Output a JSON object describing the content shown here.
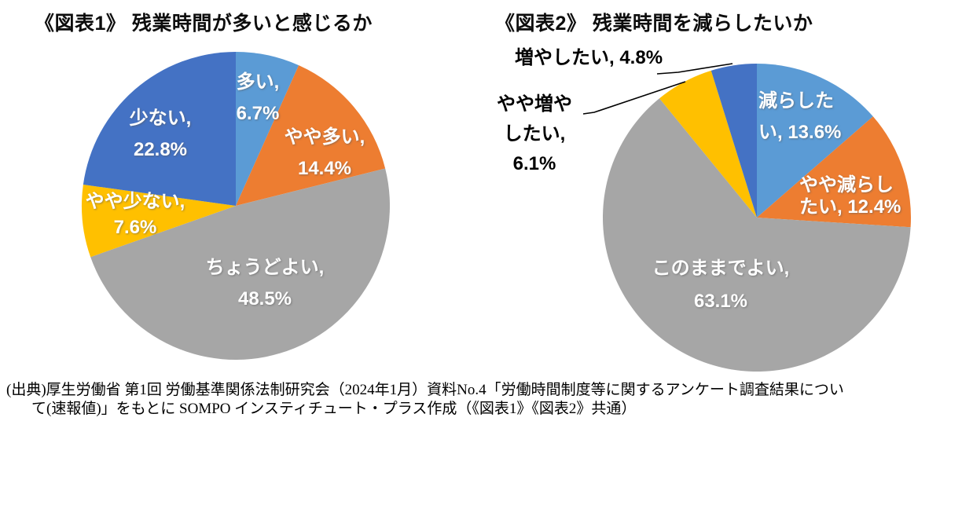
{
  "page": {
    "background": "#ffffff"
  },
  "chart_data": [
    {
      "type": "pie",
      "title": "《図表1》 残業時間が多いと感じるか",
      "start_angle_deg": 0,
      "direction": "clockwise",
      "categories": [
        "多い",
        "やや多い",
        "ちょうどよい",
        "やや少ない",
        "少ない"
      ],
      "values": [
        6.7,
        14.4,
        48.5,
        7.6,
        22.8
      ],
      "unit": "%",
      "colors": [
        "#5B9BD5",
        "#ED7D31",
        "#A6A6A6",
        "#FFC000",
        "#4472C4"
      ],
      "legend": "none",
      "data_labels": [
        {
          "text": "多い, 6.7%",
          "lines": [
            "多い,",
            "6.7%"
          ],
          "placement": "inside"
        },
        {
          "text": "やや多い, 14.4%",
          "lines": [
            "やや多い,",
            "14.4%"
          ],
          "placement": "inside"
        },
        {
          "text": "ちょうどよい, 48.5%",
          "lines": [
            "ちょうどよい,",
            "48.5%"
          ],
          "placement": "inside"
        },
        {
          "text": "やや少ない, 7.6%",
          "lines": [
            "やや少ない,",
            "7.6%"
          ],
          "placement": "inside"
        },
        {
          "text": "少ない, 22.8%",
          "lines": [
            "少ない,",
            "22.8%"
          ],
          "placement": "inside"
        }
      ]
    },
    {
      "type": "pie",
      "title": "《図表2》 残業時間を減らしたいか",
      "start_angle_deg": 0,
      "direction": "clockwise",
      "categories": [
        "減らしたい",
        "やや減らしたい",
        "このままでよい",
        "やや増やしたい",
        "増やしたい"
      ],
      "values": [
        13.6,
        12.4,
        63.1,
        6.1,
        4.8
      ],
      "unit": "%",
      "colors": [
        "#5B9BD5",
        "#ED7D31",
        "#A6A6A6",
        "#FFC000",
        "#4472C4"
      ],
      "legend": "none",
      "data_labels": [
        {
          "text": "減らしたい, 13.6%",
          "lines": [
            "減らした",
            "い, 13.6%"
          ],
          "placement": "inside"
        },
        {
          "text": "やや減らしたい, 12.4%",
          "lines": [
            "やや減らし",
            "たい, 12.4%"
          ],
          "placement": "inside"
        },
        {
          "text": "このままでよい, 63.1%",
          "lines": [
            "このままでよい,",
            "63.1%"
          ],
          "placement": "inside"
        },
        {
          "text": "やや増やしたい, 6.1%",
          "lines": [
            "やや増や",
            "したい,",
            "6.1%"
          ],
          "placement": "outside-left",
          "leader_line": true
        },
        {
          "text": "増やしたい, 4.8%",
          "lines": [
            "増やしたい, 4.8%"
          ],
          "placement": "outside-top",
          "leader_line": true
        }
      ]
    }
  ],
  "source_note": {
    "line1": "(出典)厚生労働省 第1回 労働基準関係法制研究会（2024年1月）資料No.4「労働時間制度等に関するアンケート調査結果につい",
    "line2": "て(速報値)」をもとに SOMPO インスティチュート・プラス作成（《図表1》《図表2》共通）"
  }
}
